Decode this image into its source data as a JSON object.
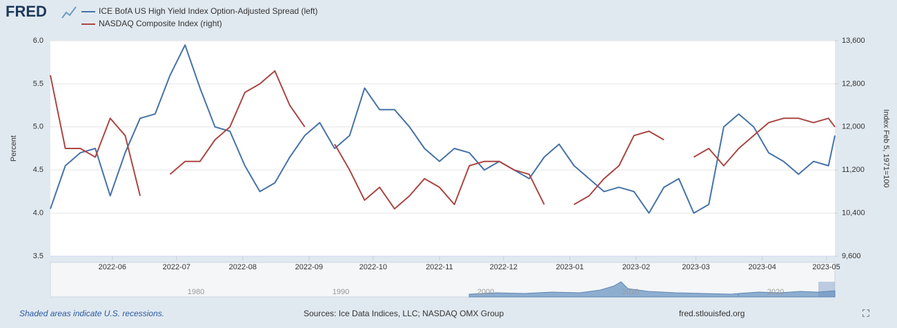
{
  "logo": "FRED",
  "chart_data": {
    "type": "line",
    "y_label": "Percent",
    "y2_label": "Index Feb 5, 1971=100",
    "x": [
      "2022-05-03",
      "2022-05-10",
      "2022-05-17",
      "2022-05-24",
      "2022-05-31",
      "2022-06-07",
      "2022-06-14",
      "2022-06-21",
      "2022-06-28",
      "2022-07-05",
      "2022-07-12",
      "2022-07-19",
      "2022-07-26",
      "2022-08-02",
      "2022-08-09",
      "2022-08-16",
      "2022-08-23",
      "2022-08-30",
      "2022-09-06",
      "2022-09-13",
      "2022-09-20",
      "2022-09-27",
      "2022-10-04",
      "2022-10-11",
      "2022-10-18",
      "2022-10-25",
      "2022-11-01",
      "2022-11-08",
      "2022-11-15",
      "2022-11-22",
      "2022-11-29",
      "2022-12-06",
      "2022-12-13",
      "2022-12-20",
      "2022-12-27",
      "2023-01-03",
      "2023-01-10",
      "2023-01-17",
      "2023-01-24",
      "2023-01-31",
      "2023-02-07",
      "2023-02-14",
      "2023-02-21",
      "2023-02-28",
      "2023-03-07",
      "2023-03-14",
      "2023-03-21",
      "2023-03-28",
      "2023-04-04",
      "2023-04-11",
      "2023-04-18",
      "2023-04-25",
      "2023-05-02",
      "2023-05-05"
    ],
    "series": [
      {
        "name": "ICE BofA US High Yield Index Option-Adjusted Spread (left)",
        "color": "#4572a7",
        "axis": "y",
        "values": [
          4.05,
          4.55,
          4.7,
          4.75,
          4.2,
          4.7,
          5.1,
          5.15,
          5.6,
          5.95,
          5.45,
          5.0,
          4.95,
          4.55,
          4.25,
          4.35,
          4.65,
          4.9,
          5.05,
          4.75,
          4.9,
          5.45,
          5.2,
          5.2,
          5.0,
          4.75,
          4.6,
          4.75,
          4.7,
          4.5,
          4.6,
          4.5,
          4.4,
          4.65,
          4.8,
          4.55,
          4.4,
          4.25,
          4.3,
          4.25,
          4.0,
          4.3,
          4.4,
          4.0,
          4.1,
          5.0,
          5.15,
          5.0,
          4.7,
          4.6,
          4.45,
          4.6,
          4.55,
          4.9
        ]
      },
      {
        "name": "NASDAQ Composite Index (right)",
        "color": "#aa4643",
        "axis": "y2",
        "values": [
          12960,
          11600,
          11600,
          11440,
          12160,
          11840,
          10720,
          null,
          11120,
          11360,
          11360,
          11760,
          12000,
          12640,
          12800,
          13040,
          12400,
          12000,
          null,
          11680,
          11200,
          10640,
          10880,
          10480,
          10720,
          11040,
          10880,
          10560,
          11280,
          11360,
          11360,
          11200,
          11120,
          10560,
          null,
          10560,
          10720,
          11040,
          11280,
          11840,
          11920,
          11760,
          null,
          11440,
          11600,
          11280,
          11600,
          11840,
          12080,
          12160,
          12160,
          12080,
          12160,
          12000
        ]
      }
    ],
    "xlim": [
      "2022-05-03",
      "2023-05-05"
    ],
    "xticks": [
      {
        "value": "2022-06-01",
        "label": "2022-06"
      },
      {
        "value": "2022-07-01",
        "label": "2022-07"
      },
      {
        "value": "2022-08-01",
        "label": "2022-08"
      },
      {
        "value": "2022-09-01",
        "label": "2022-09"
      },
      {
        "value": "2022-10-01",
        "label": "2022-10"
      },
      {
        "value": "2022-11-01",
        "label": "2022-11"
      },
      {
        "value": "2022-12-01",
        "label": "2022-12"
      },
      {
        "value": "2023-01-01",
        "label": "2023-01"
      },
      {
        "value": "2023-02-01",
        "label": "2023-02"
      },
      {
        "value": "2023-03-01",
        "label": "2023-03"
      },
      {
        "value": "2023-04-01",
        "label": "2023-04"
      },
      {
        "value": "2023-05-01",
        "label": "2023-05"
      }
    ],
    "ylim": [
      3.5,
      6
    ],
    "yticks": [
      3.5,
      {
        "value": 4,
        "label": "4.0"
      },
      4.5,
      {
        "value": 5,
        "label": "5.0"
      },
      5.5,
      {
        "value": 6,
        "label": "6.0"
      }
    ],
    "y2lim": [
      9600,
      13600
    ],
    "y2ticks": [
      {
        "value": 9600,
        "label": "9,600"
      },
      {
        "value": 10400,
        "label": "10,400"
      },
      {
        "value": 11200,
        "label": "11,200"
      },
      {
        "value": 12000,
        "label": "12,000"
      },
      {
        "value": 12800,
        "label": "12,800"
      },
      {
        "value": 13600,
        "label": "13,600"
      }
    ],
    "grid": true
  },
  "navigator": {
    "labels": [
      "1980",
      "1990",
      "2000",
      "2010",
      "2020"
    ]
  },
  "footer": {
    "note": "Shaded areas indicate U.S. recessions.",
    "sources": "Sources: Ice Data Indices, LLC; NASDAQ OMX Group",
    "site": "fred.stlouisfed.org"
  }
}
